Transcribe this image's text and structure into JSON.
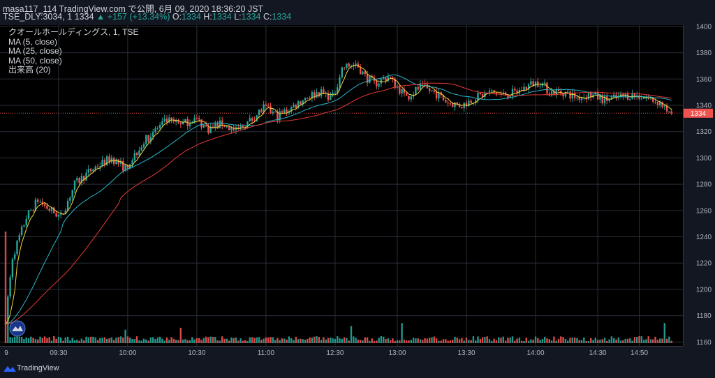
{
  "header": {
    "line1": "masa117_114 TradingView.com で公開, 6月 09, 2020 18:36:20 JST",
    "symbol_prefix": "TSE_DLY:3034, 1 1334 ",
    "arrow": "▲",
    "change": "+157 (+13.34%)",
    "o_label": "O:",
    "o_value": "1334",
    "h_label": "H:",
    "h_value": "1334",
    "l_label": "L:",
    "l_value": "1334",
    "c_label": "C:",
    "c_value": "1334"
  },
  "legend": {
    "title": "クオールホールディングス, 1, TSE",
    "ma5": "MA (5, close)",
    "ma25": "MA (25, close)",
    "ma50": "MA (50, close)",
    "volume": "出来高 (20)"
  },
  "footer": {
    "brand": "TradingView"
  },
  "colors": {
    "background": "#131722",
    "up": "#26a69a",
    "down": "#ef5350",
    "ma5": "#f5d33b",
    "ma25": "#2ab7ca",
    "ma50": "#e53935",
    "grid": "#2a2e39"
  },
  "chart_data": {
    "type": "candlestick",
    "y_axis_ticks": [
      1160,
      1180,
      1200,
      1220,
      1240,
      1260,
      1280,
      1300,
      1320,
      1340,
      1360,
      1380,
      1400
    ],
    "x_axis_ticks": [
      "9",
      "09:30",
      "10:00",
      "10:30",
      "11:00",
      "12:30",
      "13:00",
      "13:30",
      "14:00",
      "14:30",
      "14:50"
    ],
    "ylim": [
      1157,
      1401
    ],
    "last_price": 1334,
    "last_price_label": "1334",
    "price_path": [
      [
        0,
        1177
      ],
      [
        3,
        1225
      ],
      [
        9,
        1255
      ],
      [
        14,
        1268
      ],
      [
        18,
        1262
      ],
      [
        24,
        1255
      ],
      [
        30,
        1280
      ],
      [
        38,
        1292
      ],
      [
        46,
        1300
      ],
      [
        52,
        1292
      ],
      [
        58,
        1308
      ],
      [
        64,
        1320
      ],
      [
        70,
        1328
      ],
      [
        76,
        1325
      ],
      [
        82,
        1330
      ],
      [
        88,
        1322
      ],
      [
        94,
        1326
      ],
      [
        100,
        1320
      ],
      [
        106,
        1328
      ],
      [
        112,
        1338
      ],
      [
        118,
        1332
      ],
      [
        124,
        1338
      ],
      [
        130,
        1346
      ],
      [
        136,
        1350
      ],
      [
        142,
        1346
      ],
      [
        146,
        1368
      ],
      [
        152,
        1372
      ],
      [
        156,
        1362
      ],
      [
        160,
        1356
      ],
      [
        166,
        1362
      ],
      [
        170,
        1354
      ],
      [
        174,
        1346
      ],
      [
        180,
        1354
      ],
      [
        186,
        1350
      ],
      [
        192,
        1342
      ],
      [
        198,
        1340
      ],
      [
        204,
        1346
      ],
      [
        210,
        1350
      ],
      [
        216,
        1348
      ],
      [
        222,
        1350
      ],
      [
        228,
        1356
      ],
      [
        232,
        1358
      ],
      [
        236,
        1350
      ],
      [
        242,
        1350
      ],
      [
        248,
        1346
      ],
      [
        254,
        1348
      ],
      [
        260,
        1344
      ],
      [
        266,
        1346
      ],
      [
        272,
        1348
      ],
      [
        278,
        1346
      ],
      [
        284,
        1342
      ],
      [
        287,
        1336
      ],
      [
        289,
        1334
      ]
    ]
  }
}
